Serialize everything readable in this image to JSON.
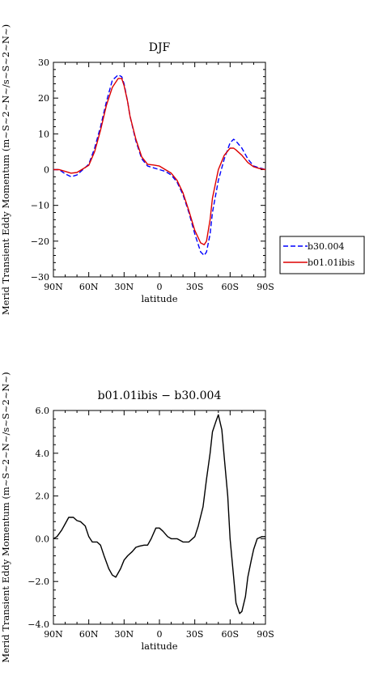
{
  "chart_data": [
    {
      "type": "line",
      "title": "DJF",
      "xlabel": "latitude",
      "ylabel": "Merid Transient Eddy Momentum (m~S~2~N~/s~S~2~N~)",
      "xticks": [
        "90N",
        "60N",
        "30N",
        "0",
        "30S",
        "60S",
        "90S"
      ],
      "yticks": [
        "30",
        "20",
        "10",
        "0",
        "−10",
        "−20",
        "−30"
      ],
      "xlim": [
        -90,
        90
      ],
      "ylim": [
        -30,
        30
      ],
      "legend_position": "right",
      "series": [
        {
          "name": "b30.004",
          "color": "#0000ff",
          "dash": "dashed",
          "x": [
            -90,
            -85,
            -80,
            -75,
            -70,
            -65,
            -60,
            -55,
            -50,
            -45,
            -40,
            -35,
            -32,
            -30,
            -27,
            -25,
            -20,
            -15,
            -10,
            -5,
            0,
            5,
            10,
            15,
            20,
            25,
            30,
            35,
            38,
            40,
            43,
            45,
            50,
            55,
            60,
            63,
            65,
            70,
            75,
            80,
            85,
            90
          ],
          "y": [
            0,
            0,
            -1.2,
            -2,
            -1.5,
            0,
            1.5,
            6,
            12,
            19,
            25,
            26.5,
            26,
            24,
            19,
            15,
            8,
            3,
            1,
            0.5,
            0,
            -0.5,
            -1.5,
            -3.5,
            -7,
            -12,
            -18,
            -23,
            -24,
            -23,
            -18,
            -12,
            -3,
            3,
            7.5,
            8.5,
            8,
            6,
            3,
            1,
            0.5,
            0
          ]
        },
        {
          "name": "b01.01ibis",
          "color": "#dd0000",
          "dash": "solid",
          "x": [
            -90,
            -85,
            -80,
            -75,
            -70,
            -65,
            -60,
            -55,
            -50,
            -45,
            -40,
            -35,
            -32,
            -30,
            -27,
            -25,
            -20,
            -15,
            -10,
            -5,
            0,
            5,
            10,
            15,
            20,
            25,
            30,
            35,
            38,
            40,
            43,
            45,
            50,
            55,
            60,
            63,
            65,
            70,
            75,
            80,
            85,
            90
          ],
          "y": [
            0,
            0,
            -0.5,
            -1,
            -0.8,
            0.2,
            1.2,
            5,
            11,
            18,
            23,
            25.5,
            25.5,
            23.5,
            19,
            15,
            8.5,
            3.5,
            1.5,
            1.3,
            1,
            0,
            -1,
            -3,
            -6.5,
            -11.5,
            -17,
            -20.5,
            -21,
            -20,
            -14,
            -8,
            0,
            4,
            6,
            6,
            5.5,
            4,
            2,
            0.8,
            0.3,
            0
          ]
        }
      ]
    },
    {
      "type": "line",
      "title": "b01.01ibis − b30.004",
      "xlabel": "latitude",
      "ylabel": "Merid Transient Eddy Momentum (m~S~2~N~/s~S~2~N~)",
      "xticks": [
        "90N",
        "60N",
        "30N",
        "0",
        "30S",
        "60S",
        "90S"
      ],
      "yticks": [
        "6.0",
        "4.0",
        "2.0",
        "0.0",
        "−2.0",
        "−4.0"
      ],
      "xlim": [
        -90,
        90
      ],
      "ylim": [
        -4,
        6
      ],
      "series": [
        {
          "color": "#000000",
          "dash": "solid",
          "x": [
            -90,
            -87,
            -83,
            -80,
            -77,
            -73,
            -70,
            -67,
            -63,
            -60,
            -57,
            -53,
            -50,
            -47,
            -43,
            -40,
            -37,
            -33,
            -30,
            -27,
            -23,
            -20,
            -17,
            -13,
            -10,
            -7,
            -3,
            0,
            3,
            7,
            10,
            15,
            20,
            25,
            30,
            33,
            37,
            40,
            43,
            45,
            48,
            50,
            53,
            55,
            58,
            60,
            63,
            65,
            68,
            70,
            73,
            75,
            78,
            80,
            83,
            87,
            90
          ],
          "y": [
            0,
            0.1,
            0.4,
            0.7,
            1,
            1,
            0.85,
            0.8,
            0.6,
            0.1,
            -0.15,
            -0.15,
            -0.3,
            -0.8,
            -1.4,
            -1.7,
            -1.8,
            -1.4,
            -1,
            -0.8,
            -0.6,
            -0.4,
            -0.35,
            -0.3,
            -0.3,
            0,
            0.5,
            0.5,
            0.35,
            0.1,
            0,
            0,
            -0.15,
            -0.15,
            0.1,
            0.6,
            1.5,
            2.8,
            4,
            5,
            5.5,
            5.8,
            5.1,
            3.8,
            2,
            0,
            -1.8,
            -3,
            -3.5,
            -3.4,
            -2.7,
            -1.8,
            -1,
            -0.5,
            0,
            0.1,
            0.1
          ]
        }
      ]
    }
  ],
  "legend": {
    "items": [
      "b30.004",
      "b01.01ibis"
    ]
  }
}
